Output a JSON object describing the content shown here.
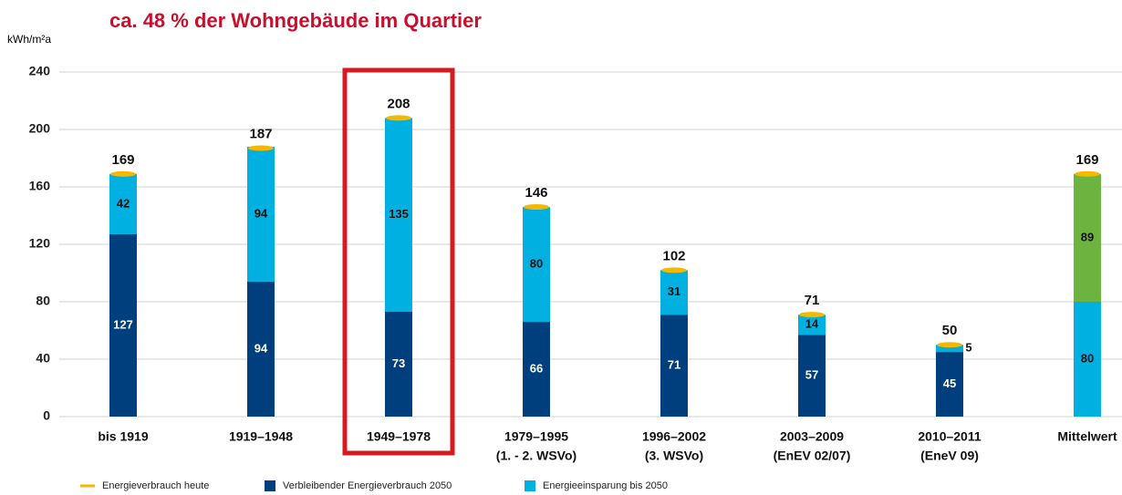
{
  "chart_data": {
    "type": "stacked_bar",
    "title": "ca. 48 % der Wohngebäude im Quartier",
    "ylabel": "kWh/m²a",
    "categories": [
      [
        "bis 1919"
      ],
      [
        "1919–1948"
      ],
      [
        "1949–1978"
      ],
      [
        "1979–1995",
        "(1. - 2. WSVo)"
      ],
      [
        "1996–2002",
        "(3. WSVo)"
      ],
      [
        "2003–2009",
        "(EnEV 02/07)"
      ],
      [
        "2010–2011",
        "(EneV 09)"
      ],
      [
        "Mittelwert"
      ]
    ],
    "series": [
      {
        "name": "Verbleibender Energieverbrauch 2050",
        "color": "#003f7d",
        "colors": [
          "#003f7d",
          "#003f7d",
          "#003f7d",
          "#003f7d",
          "#003f7d",
          "#003f7d",
          "#003f7d",
          "#00b0e0"
        ],
        "values": [
          127,
          94,
          73,
          66,
          71,
          57,
          45,
          80
        ]
      },
      {
        "name": "Energieeinsparung bis 2050",
        "color": "#00b0e0",
        "colors": [
          "#00b0e0",
          "#00b0e0",
          "#00b0e0",
          "#00b0e0",
          "#00b0e0",
          "#00b0e0",
          "#00b0e0",
          "#6db33f"
        ],
        "values": [
          42,
          94,
          135,
          80,
          31,
          14,
          5,
          89
        ]
      }
    ],
    "totals": {
      "name": "Energieverbrauch heute",
      "color": "#f5b800",
      "values": [
        169,
        187,
        208,
        146,
        102,
        71,
        50,
        169
      ]
    },
    "ylim": [
      0,
      240
    ],
    "yticks": [
      0,
      40,
      80,
      120,
      160,
      200,
      240
    ],
    "grid": true,
    "highlight_index": 2,
    "highlight_color": "#d71920"
  }
}
